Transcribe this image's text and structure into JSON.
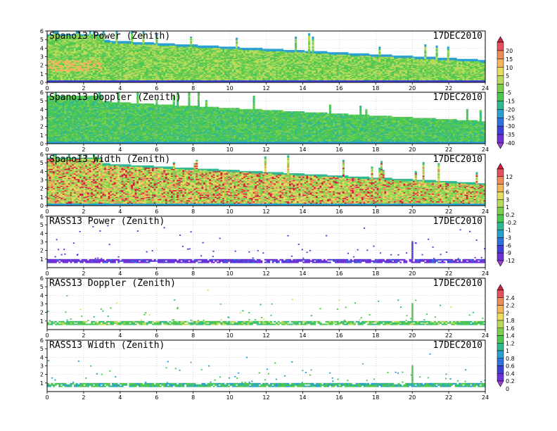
{
  "chart_data": {
    "type": "heatmap",
    "x_ticks": [
      "0",
      "2",
      "4",
      "6",
      "8",
      "10",
      "12",
      "14",
      "16",
      "18",
      "20",
      "22",
      "24"
    ],
    "xlim": [
      0,
      24
    ],
    "panels": [
      {
        "title": "Spano13 Power (Zenith)",
        "date": "17DEC2010",
        "ylim": [
          0,
          6
        ],
        "y_ticks": [
          "0",
          "1",
          "2",
          "3",
          "4",
          "5",
          "6"
        ],
        "kind": "wind",
        "field": "power",
        "cbar": 0
      },
      {
        "title": "Spano13 Doppler (Zenith)",
        "date": "17DEC2010",
        "ylim": [
          0,
          6
        ],
        "y_ticks": [
          "0",
          "1",
          "2",
          "3",
          "4",
          "5",
          "6"
        ],
        "kind": "wind",
        "field": "doppler",
        "cbar": 0
      },
      {
        "title": "Spano13 Width (Zenith)",
        "date": "17DEC2010",
        "ylim": [
          0,
          6
        ],
        "y_ticks": [
          "0",
          "1",
          "2",
          "3",
          "4",
          "5",
          "6"
        ],
        "kind": "wind",
        "field": "width",
        "cbar": 1
      },
      {
        "title": "RASS13 Power (Zenith)",
        "date": "17DEC2010",
        "ylim": [
          0,
          6
        ],
        "y_ticks": [
          "1",
          "2",
          "3",
          "4",
          "5",
          "6"
        ],
        "kind": "rass",
        "field": "power",
        "cbar": 1
      },
      {
        "title": "RASS13 Doppler (Zenith)",
        "date": "17DEC2010",
        "ylim": [
          0,
          6
        ],
        "y_ticks": [
          "1",
          "2",
          "3",
          "4",
          "5",
          "6"
        ],
        "kind": "rass",
        "field": "doppler",
        "cbar": 2
      },
      {
        "title": "RASS13 Width (Zenith)",
        "date": "17DEC2010",
        "ylim": [
          0,
          6
        ],
        "y_ticks": [
          "1",
          "2",
          "3",
          "4",
          "5",
          "6"
        ],
        "kind": "rass",
        "field": "width",
        "cbar": 2
      }
    ],
    "colorbars": [
      {
        "labels": [
          "20",
          "15",
          "10",
          "5",
          "0",
          "-5",
          "-15",
          "-20",
          "-25",
          "-30",
          "-35",
          "-40"
        ],
        "colors": [
          "#d02040",
          "#e85060",
          "#f08c5a",
          "#f4b45a",
          "#e8dc5c",
          "#b8dc5a",
          "#7cd050",
          "#4cc850",
          "#30b890",
          "#28a0d0",
          "#3070e0",
          "#4040d8",
          "#7030d8",
          "#9c40d8"
        ]
      },
      {
        "labels": [
          "12",
          "9",
          "6",
          "3",
          "1",
          "0.2",
          "-0.2",
          "-1",
          "-3",
          "-6",
          "-9",
          "-12"
        ],
        "colors": [
          "#d02040",
          "#e85060",
          "#f08c5a",
          "#f4b45a",
          "#e8dc5c",
          "#b8dc5a",
          "#7cd050",
          "#4cc850",
          "#30b890",
          "#28a0d0",
          "#3070e0",
          "#4040d8",
          "#7030d8",
          "#9c40d8"
        ]
      },
      {
        "labels": [
          "2.4",
          "2.2",
          "2",
          "1.8",
          "1.6",
          "1.4",
          "1.2",
          "1",
          "0.8",
          "0.6",
          "0.4",
          "0.2",
          "0"
        ],
        "colors": [
          "#d02040",
          "#e85060",
          "#f08c5a",
          "#f4b45a",
          "#e8dc5c",
          "#b8dc5a",
          "#7cd050",
          "#4cc850",
          "#30b890",
          "#28a0d0",
          "#3070e0",
          "#4040d8",
          "#7030d8",
          "#9c40d8"
        ]
      }
    ]
  }
}
